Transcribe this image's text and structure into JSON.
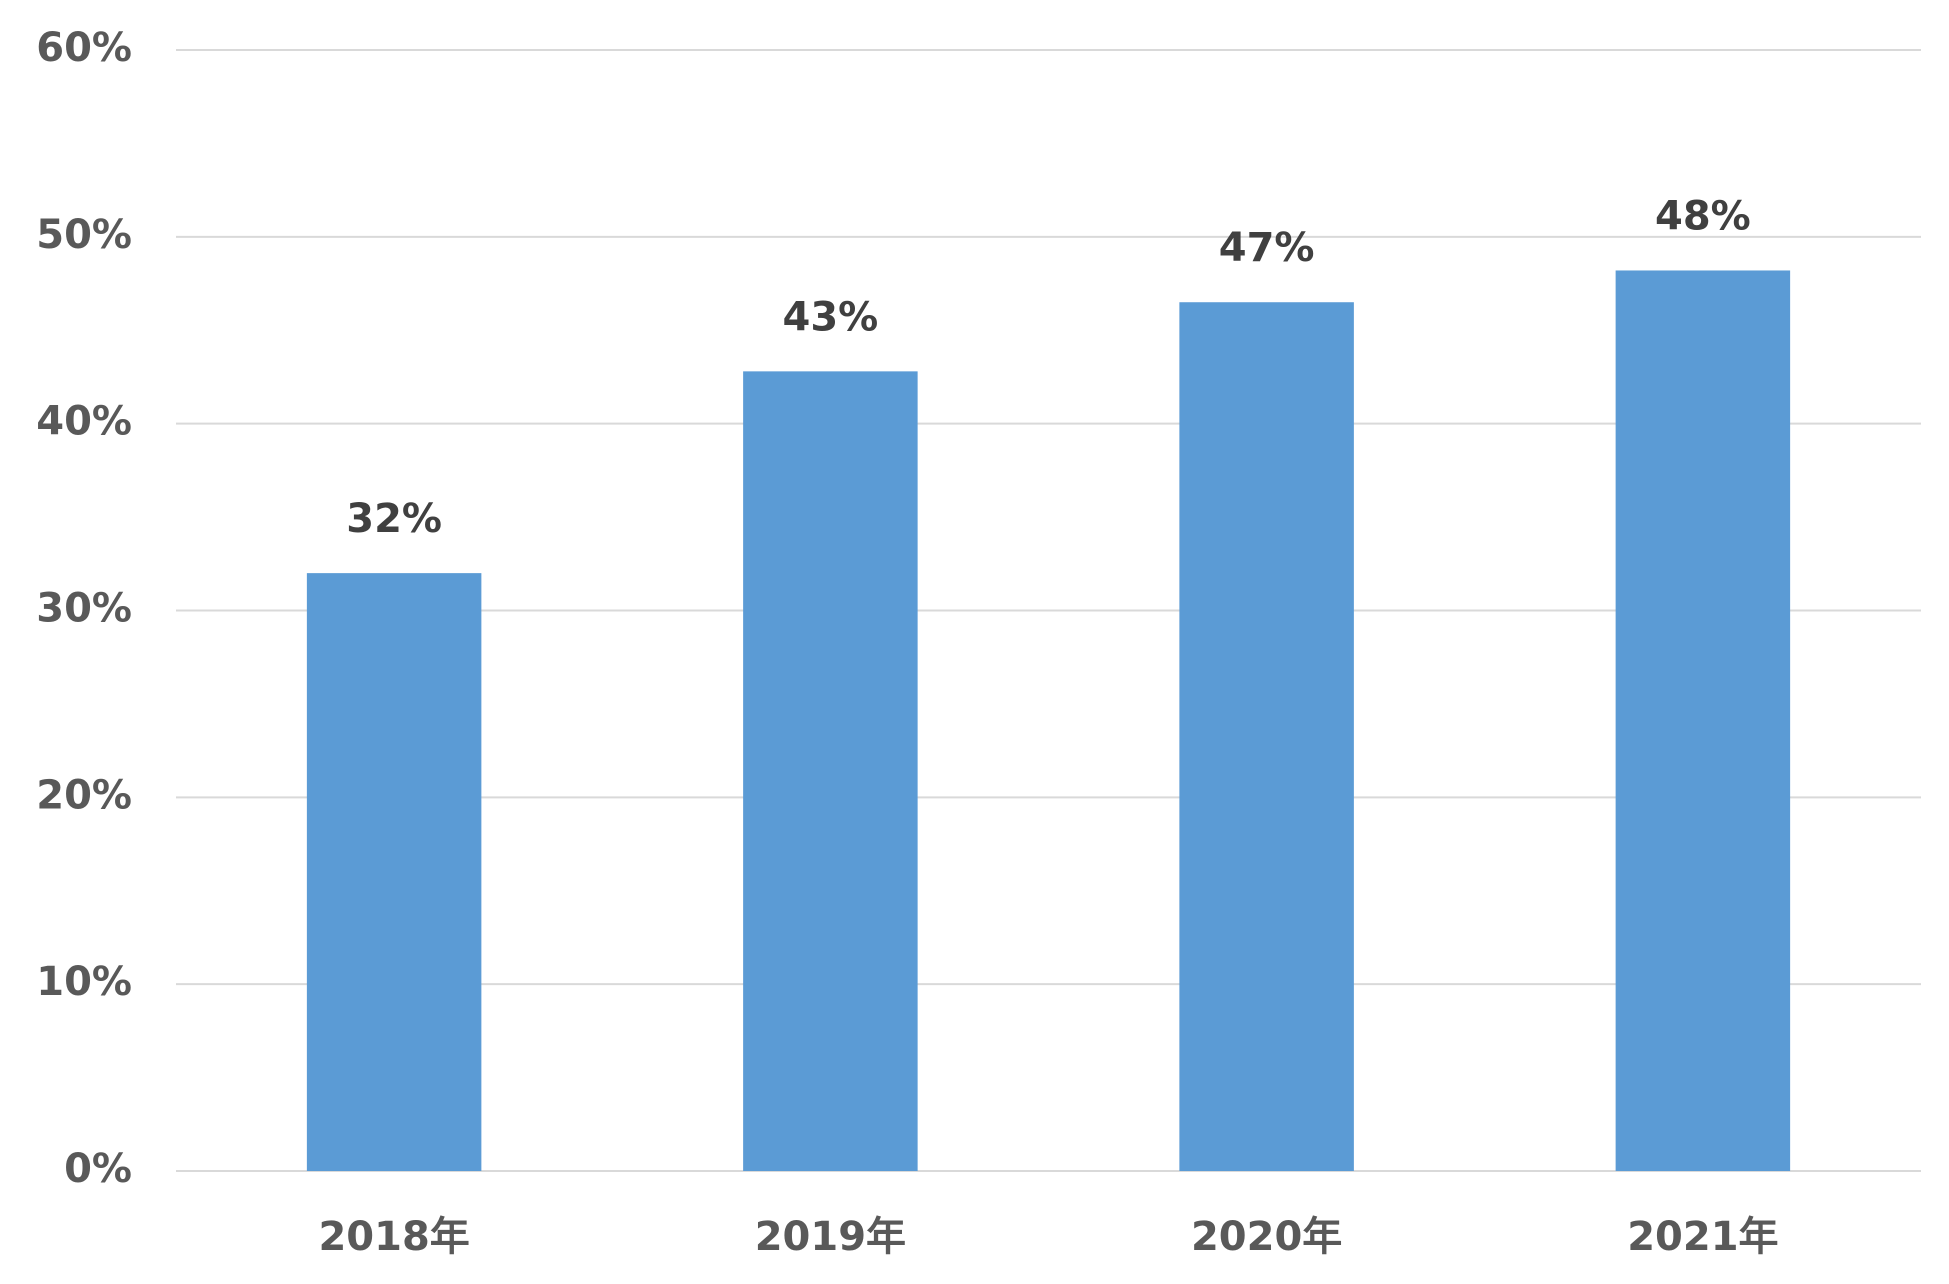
{
  "chart_data": {
    "type": "bar",
    "categories": [
      "2018年",
      "2019年",
      "2020年",
      "2021年"
    ],
    "values": [
      32,
      42.8,
      46.5,
      48.2
    ],
    "value_labels": [
      "32%",
      "43%",
      "47%",
      "48%"
    ],
    "color": "#5b9bd5",
    "ylim": [
      0,
      60
    ],
    "yticks": [
      {
        "value": 0,
        "label": "0%"
      },
      {
        "value": 10,
        "label": "10%"
      },
      {
        "value": 20,
        "label": "20%"
      },
      {
        "value": 30,
        "label": "30%"
      },
      {
        "value": 40,
        "label": "40%"
      },
      {
        "value": 50,
        "label": "50%"
      },
      {
        "value": 60,
        "label": "60%"
      }
    ],
    "grid": true
  }
}
